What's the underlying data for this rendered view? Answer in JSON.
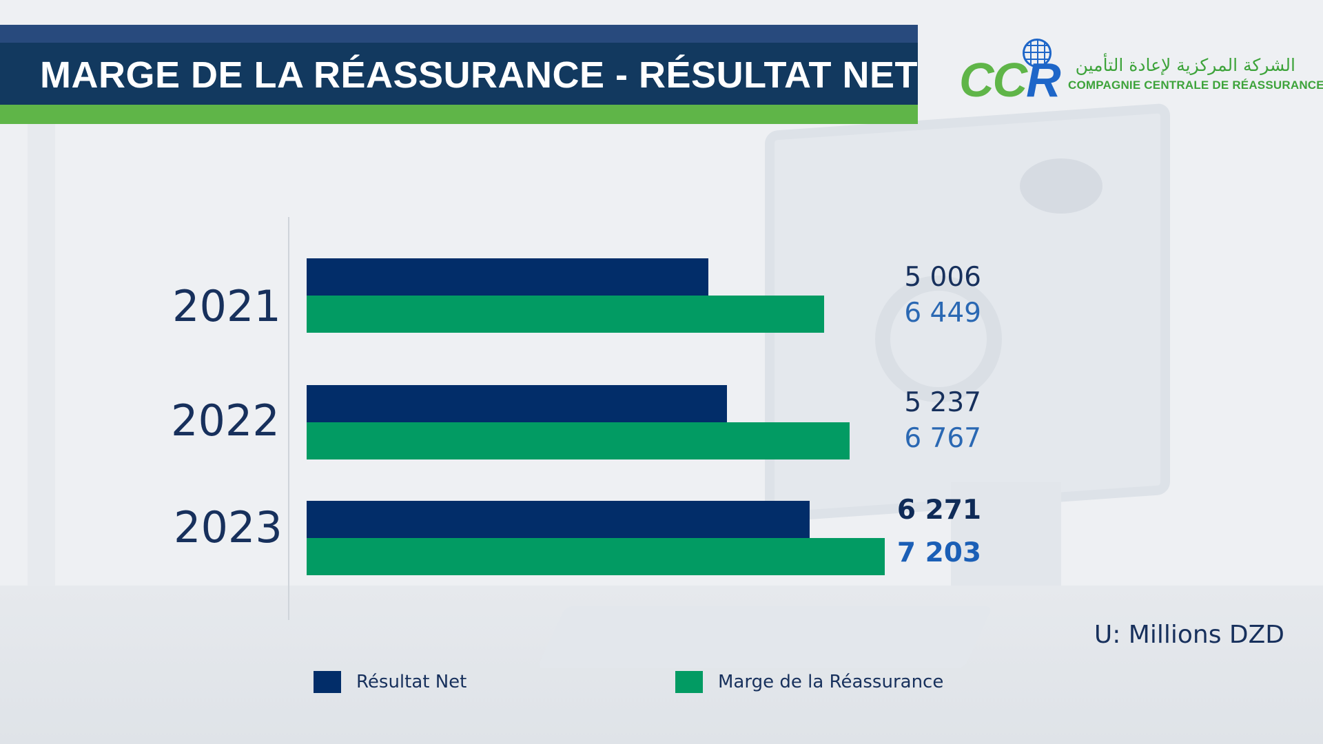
{
  "header": {
    "title": "MARGE DE LA RÉASSURANCE - RÉSULTAT NET"
  },
  "logo": {
    "mark": "CCR",
    "arabic_name": "الشركة المركزية لإعادة التأمين",
    "company_name": "COMPAGNIE CENTRALE DE RÉASSURANCE",
    "icon": "globe-icon"
  },
  "colors": {
    "net": "#022d69",
    "marge": "#029b63",
    "header_navy": "#12395f",
    "header_green": "#5fb548"
  },
  "chart_data": {
    "type": "bar",
    "orientation": "horizontal",
    "categories": [
      "2021",
      "2022",
      "2023"
    ],
    "series": [
      {
        "name": "Résultat Net",
        "values": [
          5006,
          5237,
          6271
        ],
        "labels": [
          "5 006",
          "5 237",
          "6 271"
        ]
      },
      {
        "name": "Marge de la Réassurance",
        "values": [
          6449,
          6767,
          7203
        ],
        "labels": [
          "6 449",
          "6 767",
          "7 203"
        ]
      }
    ],
    "unit": "U: Millions DZD",
    "legend_placement": "bottom",
    "grid": false,
    "xlim": [
      0,
      9300
    ]
  }
}
